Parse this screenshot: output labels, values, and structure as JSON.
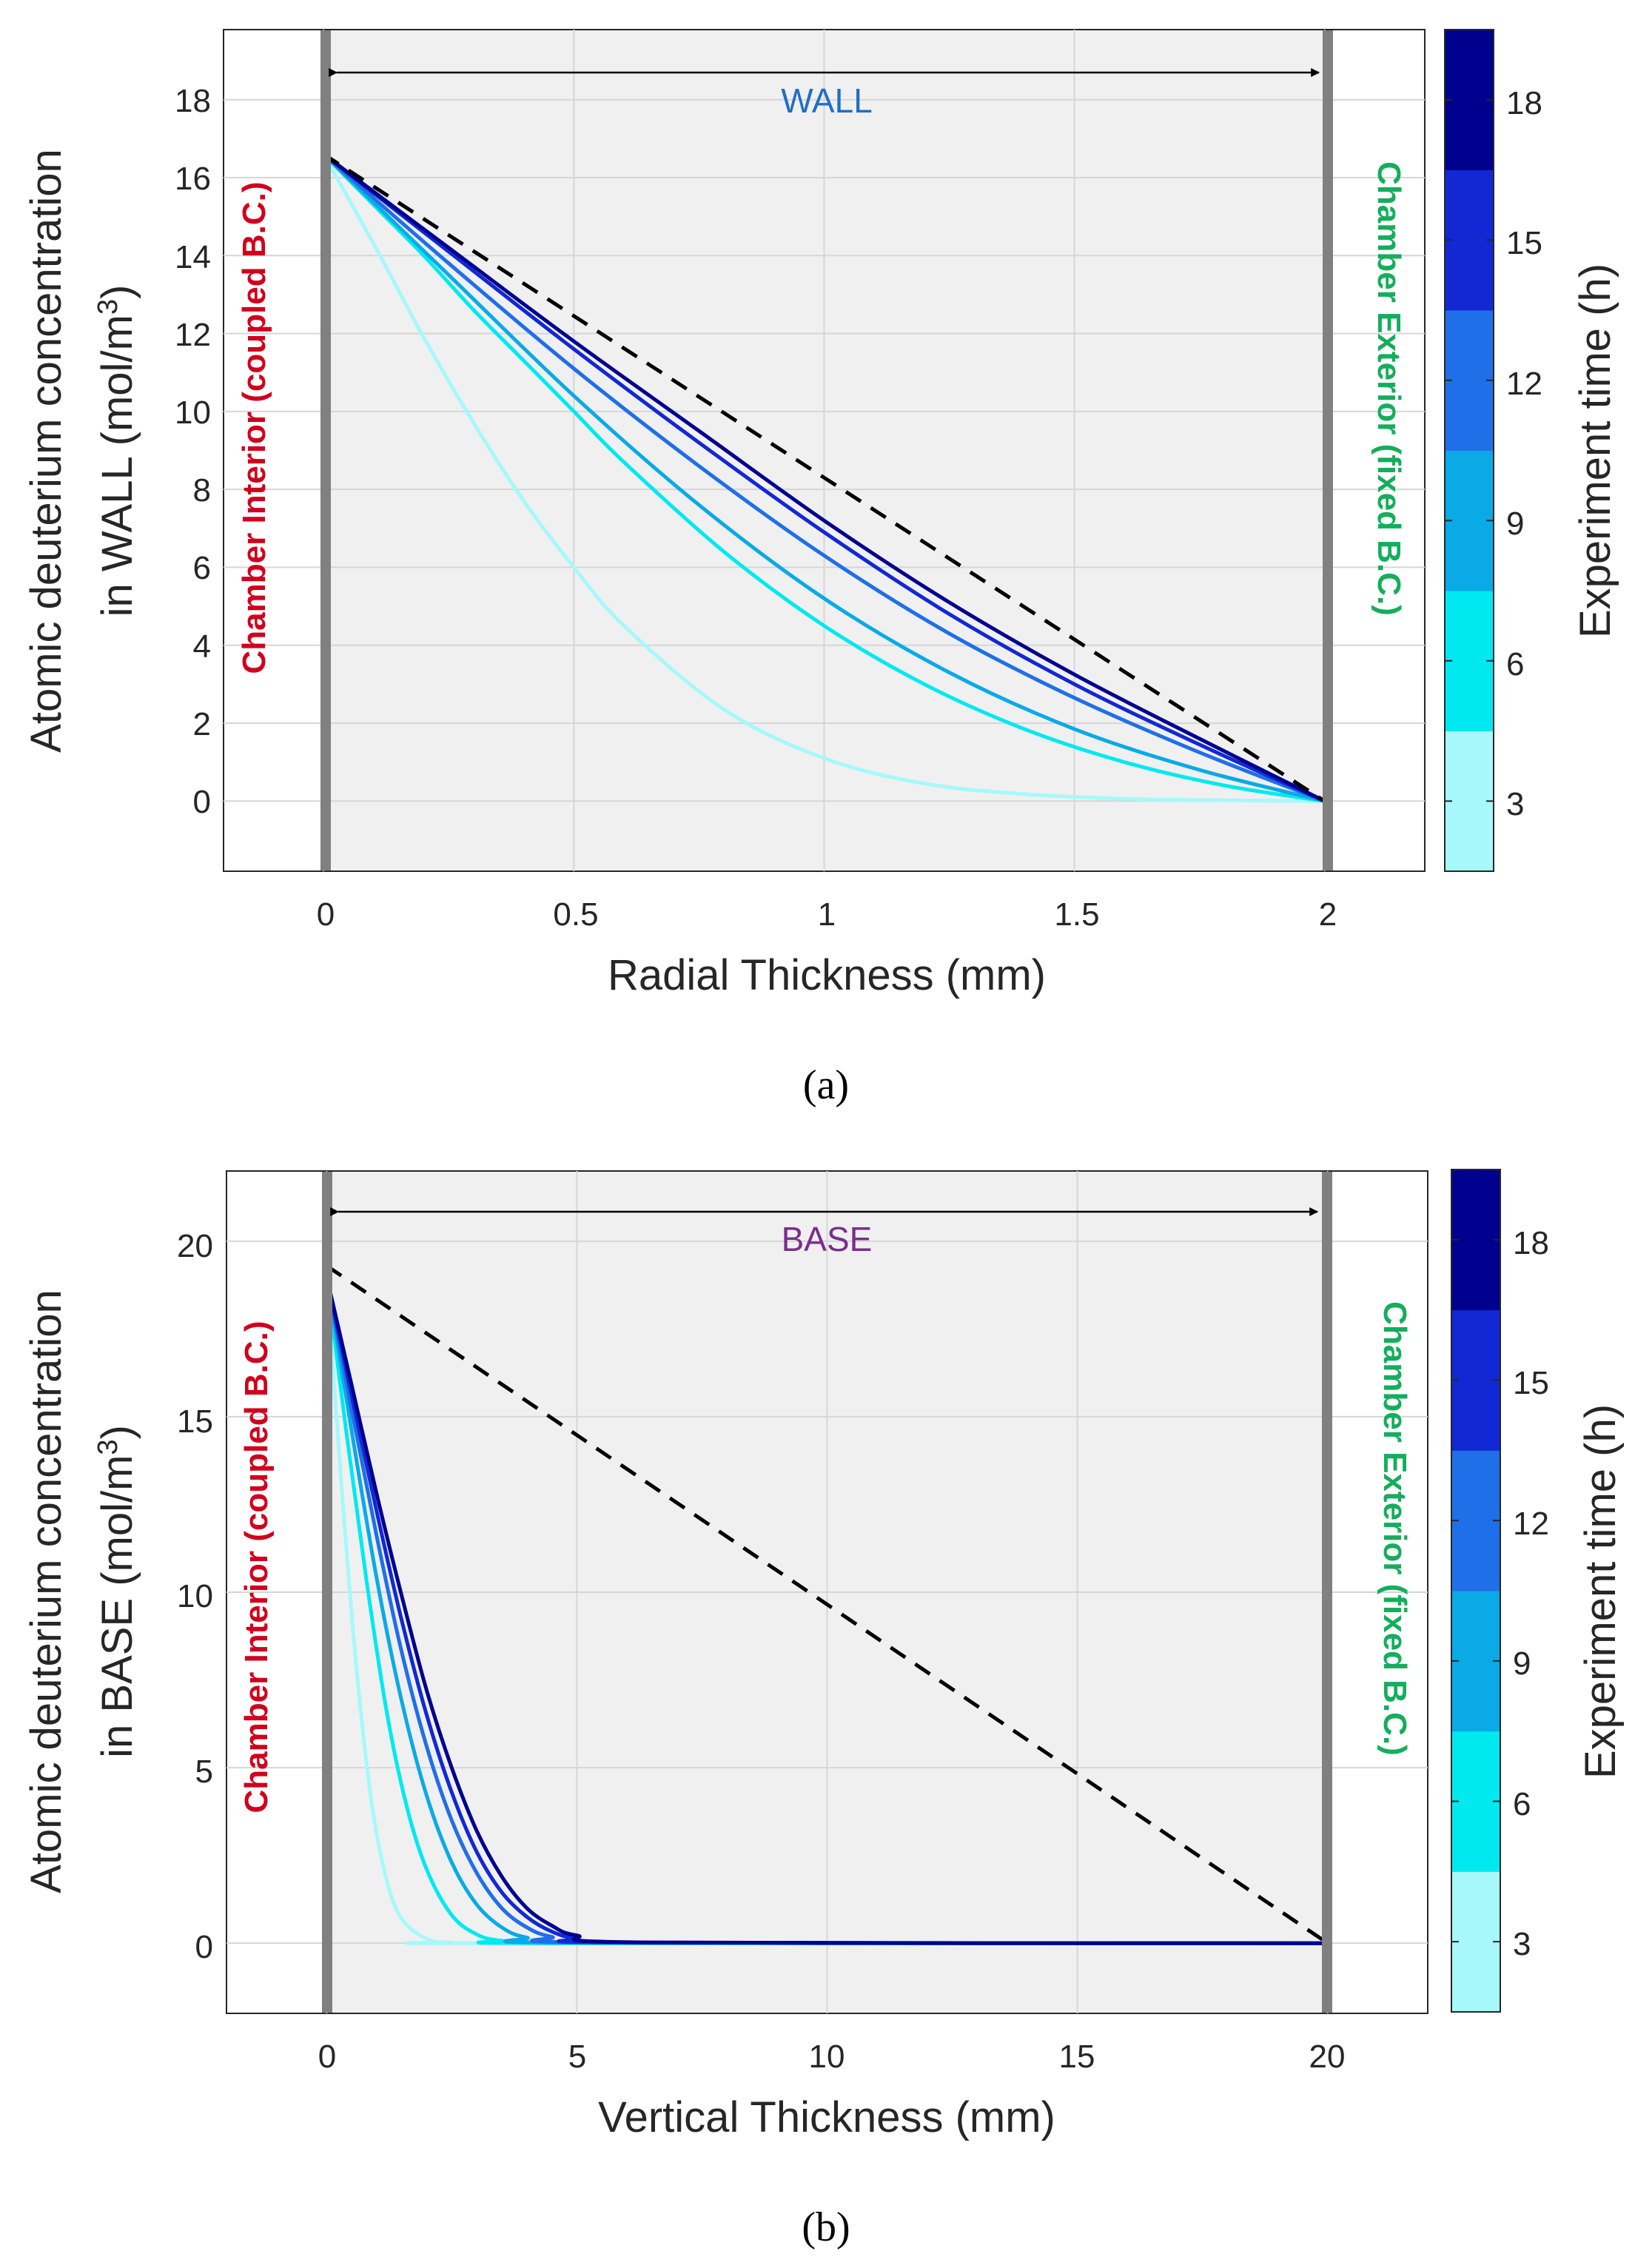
{
  "chart_data": [
    {
      "panel": "a",
      "type": "line",
      "caption": "(a)",
      "xlabel": "Radial Thickness (mm)",
      "ylabel_line1": "Atomic deuterium concentration",
      "ylabel_line2": "in WALL (mol/m",
      "ylabel_sup": "3",
      "ylabel_close": ")",
      "xlim": [
        -0.2,
        2.2
      ],
      "ylim": [
        -1.8,
        19.8
      ],
      "xticks": [
        0,
        0.5,
        1,
        1.5,
        2
      ],
      "xtick_labels": [
        "0",
        "0.5",
        "1",
        "1.5",
        "2"
      ],
      "yticks": [
        0,
        2,
        4,
        6,
        8,
        10,
        12,
        14,
        16,
        18
      ],
      "ytick_labels": [
        "0",
        "2",
        "4",
        "6",
        "8",
        "10",
        "12",
        "14",
        "16",
        "18"
      ],
      "region_label": "WALL",
      "region_color": "#1f6fc4",
      "left_boundary_label": "Chamber Interior (coupled B.C.)",
      "left_boundary_color": "#d1001c",
      "right_boundary_label": "Chamber Exterior (fixed B.C.)",
      "right_boundary_color": "#14ae5c",
      "wall_x": [
        0,
        2
      ],
      "series": [
        {
          "name": "3 h",
          "color": "#a6f8fb",
          "x": [
            0,
            0.1,
            0.2,
            0.3,
            0.4,
            0.5,
            0.6,
            0.8,
            1.0,
            1.2,
            1.4,
            1.6,
            1.8,
            2.0
          ],
          "y": [
            16.6,
            14.3,
            11.9,
            9.7,
            7.7,
            6.0,
            4.5,
            2.35,
            1.1,
            0.45,
            0.18,
            0.06,
            0.02,
            0
          ]
        },
        {
          "name": "6 h",
          "color": "#00e9f0",
          "x": [
            0,
            0.1,
            0.2,
            0.3,
            0.4,
            0.5,
            0.6,
            0.8,
            1.0,
            1.2,
            1.4,
            1.6,
            1.8,
            2.0
          ],
          "y": [
            16.6,
            15.3,
            14.0,
            12.6,
            11.3,
            10.0,
            8.7,
            6.4,
            4.5,
            3.0,
            1.85,
            1.0,
            0.4,
            0
          ]
        },
        {
          "name": "9 h",
          "color": "#0aaae6",
          "x": [
            0,
            0.25,
            0.5,
            0.75,
            1.0,
            1.25,
            1.5,
            1.75,
            2.0
          ],
          "y": [
            16.6,
            13.5,
            10.4,
            7.6,
            5.2,
            3.3,
            1.85,
            0.8,
            0
          ]
        },
        {
          "name": "12 h",
          "color": "#1f6fe8",
          "x": [
            0,
            0.25,
            0.5,
            0.75,
            1.0,
            1.25,
            1.5,
            1.75,
            2.0
          ],
          "y": [
            16.6,
            13.8,
            11.1,
            8.6,
            6.3,
            4.3,
            2.65,
            1.25,
            0
          ]
        },
        {
          "name": "15 h",
          "color": "#1228d4",
          "x": [
            0,
            0.25,
            0.5,
            0.75,
            1.0,
            1.25,
            1.5,
            1.75,
            2.0
          ],
          "y": [
            16.6,
            14.1,
            11.6,
            9.2,
            6.9,
            4.8,
            3.0,
            1.45,
            0
          ]
        },
        {
          "name": "18 h",
          "color": "#00008f",
          "x": [
            0,
            0.25,
            0.5,
            0.75,
            1.0,
            1.25,
            1.5,
            1.75,
            2.0
          ],
          "y": [
            16.6,
            14.2,
            11.8,
            9.5,
            7.2,
            5.1,
            3.25,
            1.6,
            0
          ]
        },
        {
          "name": "steady state",
          "color": "#000000",
          "dashed": true,
          "x": [
            0,
            2.0
          ],
          "y": [
            16.6,
            0
          ]
        }
      ],
      "colorbar": {
        "label": "Experiment time (h)",
        "range": [
          1.5,
          19.5
        ],
        "ticks": [
          3,
          6,
          9,
          12,
          15,
          18
        ],
        "tick_labels": [
          "3",
          "6",
          "9",
          "12",
          "15",
          "18"
        ],
        "colors": [
          "#a6f8fb",
          "#00e9f0",
          "#0aaae6",
          "#1f6fe8",
          "#1228d4",
          "#00008f"
        ]
      }
    },
    {
      "panel": "b",
      "type": "line",
      "caption": "(b)",
      "xlabel": "Vertical Thickness (mm)",
      "ylabel_line1": "Atomic deuterium concentration",
      "ylabel_line2": "in BASE (mol/m",
      "ylabel_sup": "3",
      "ylabel_close": ")",
      "xlim": [
        -2,
        22
      ],
      "ylim": [
        -2,
        22
      ],
      "xticks": [
        0,
        5,
        10,
        15,
        20
      ],
      "xtick_labels": [
        "0",
        "5",
        "10",
        "15",
        "20"
      ],
      "yticks": [
        0,
        5,
        10,
        15,
        20
      ],
      "ytick_labels": [
        "0",
        "5",
        "10",
        "15",
        "20"
      ],
      "region_label": "BASE",
      "region_color": "#7b2d8e",
      "left_boundary_label": "Chamber Interior (coupled B.C.)",
      "left_boundary_color": "#d1001c",
      "right_boundary_label": "Chamber Exterior (fixed B.C.)",
      "right_boundary_color": "#14ae5c",
      "wall_x": [
        0,
        20
      ],
      "series": [
        {
          "name": "3 h",
          "color": "#a6f8fb",
          "x": [
            0,
            0.3,
            0.6,
            0.9,
            1.2,
            1.5,
            2.0,
            2.5,
            3.0,
            20
          ],
          "y": [
            19.0,
            13.0,
            7.8,
            4.0,
            1.8,
            0.7,
            0.12,
            0.02,
            0,
            0
          ]
        },
        {
          "name": "6 h",
          "color": "#00e9f0",
          "x": [
            0,
            0.4,
            0.8,
            1.2,
            1.6,
            2.0,
            2.5,
            3.0,
            3.5,
            4.5,
            20
          ],
          "y": [
            19.0,
            14.5,
            10.3,
            6.6,
            3.9,
            2.1,
            0.8,
            0.25,
            0.07,
            0,
            0
          ]
        },
        {
          "name": "9 h",
          "color": "#0aaae6",
          "x": [
            0,
            0.5,
            1.0,
            1.5,
            2.0,
            2.5,
            3.0,
            3.5,
            4.0,
            5.0,
            20
          ],
          "y": [
            19.0,
            14.6,
            10.4,
            6.9,
            4.2,
            2.3,
            1.1,
            0.45,
            0.16,
            0.01,
            0
          ]
        },
        {
          "name": "12 h",
          "color": "#1f6fe8",
          "x": [
            0,
            0.5,
            1.0,
            1.5,
            2.0,
            2.5,
            3.0,
            3.5,
            4.0,
            4.5,
            5.5,
            20
          ],
          "y": [
            19.0,
            15.2,
            11.6,
            8.3,
            5.6,
            3.5,
            2.0,
            1.0,
            0.45,
            0.18,
            0.02,
            0
          ]
        },
        {
          "name": "15 h",
          "color": "#1228d4",
          "x": [
            0,
            0.5,
            1.0,
            1.5,
            2.0,
            2.5,
            3.0,
            3.5,
            4.0,
            4.5,
            5.0,
            6.0,
            20
          ],
          "y": [
            19.0,
            15.6,
            12.3,
            9.2,
            6.5,
            4.3,
            2.6,
            1.45,
            0.75,
            0.33,
            0.13,
            0.02,
            0
          ]
        },
        {
          "name": "18 h",
          "color": "#00008f",
          "x": [
            0,
            0.5,
            1.0,
            1.5,
            2.0,
            2.5,
            3.0,
            3.5,
            4.0,
            4.5,
            5.0,
            6.5,
            20
          ],
          "y": [
            19.0,
            15.9,
            12.8,
            9.9,
            7.2,
            5.0,
            3.2,
            1.9,
            1.0,
            0.5,
            0.22,
            0.02,
            0
          ]
        },
        {
          "name": "steady state",
          "color": "#000000",
          "dashed": true,
          "x": [
            0,
            20
          ],
          "y": [
            19.3,
            0
          ]
        }
      ],
      "colorbar": {
        "label": "Experiment time (h)",
        "range": [
          1.5,
          19.5
        ],
        "ticks": [
          3,
          6,
          9,
          12,
          15,
          18
        ],
        "tick_labels": [
          "3",
          "6",
          "9",
          "12",
          "15",
          "18"
        ],
        "colors": [
          "#a6f8fb",
          "#00e9f0",
          "#0aaae6",
          "#1f6fe8",
          "#1228d4",
          "#00008f"
        ]
      }
    }
  ]
}
